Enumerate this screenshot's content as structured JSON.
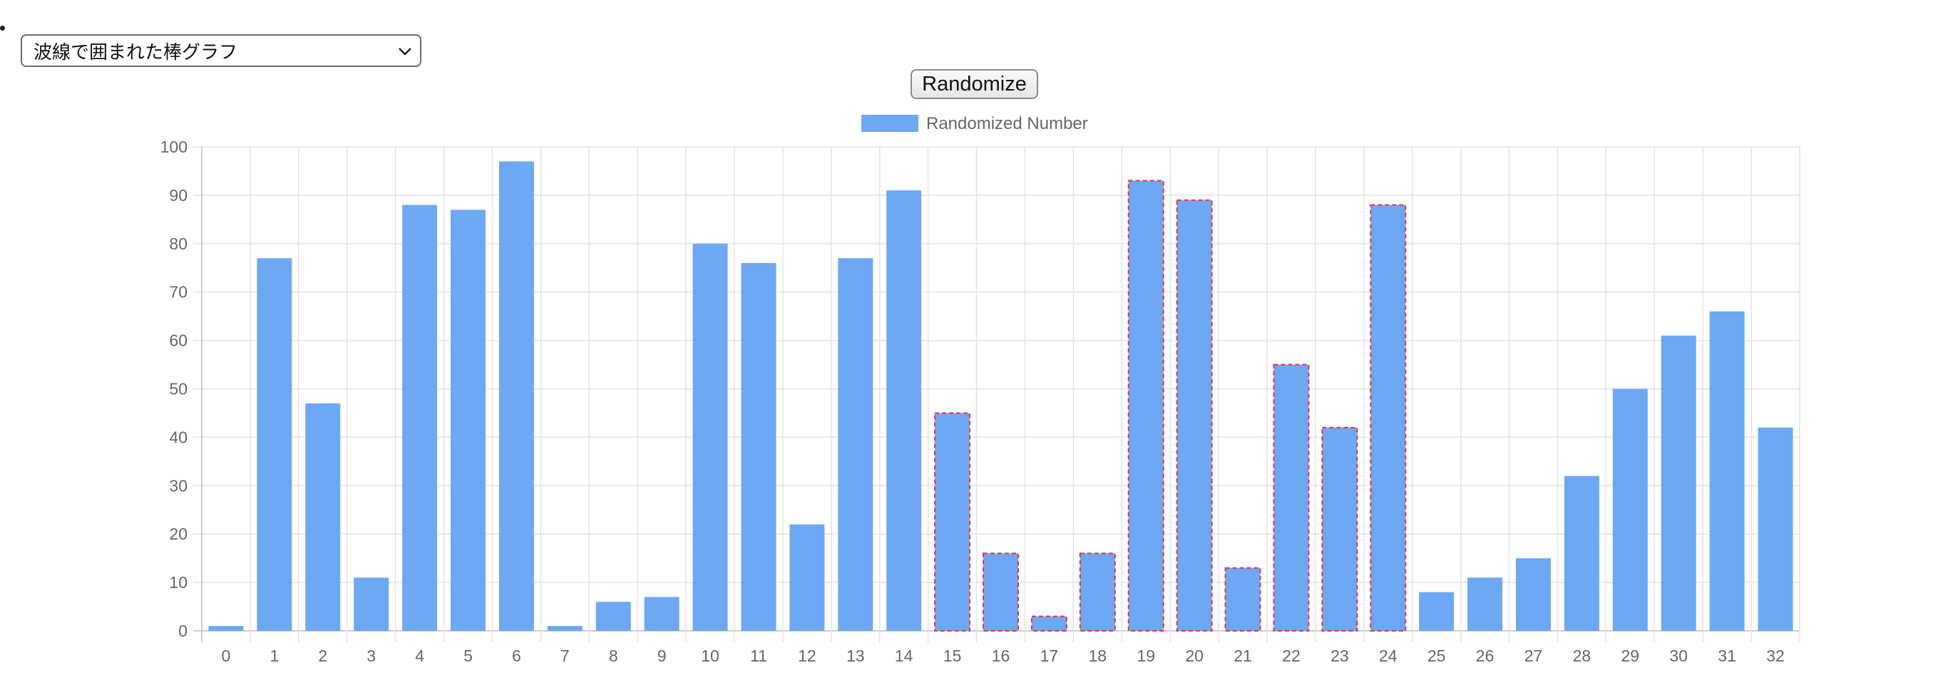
{
  "select": {
    "value": "波線で囲まれた棒グラフ"
  },
  "button": {
    "label": "Randomize"
  },
  "colors": {
    "bar_fill": "#6ea8f2",
    "dashed_border": "#e8323c",
    "grid": "#e3e3e3",
    "axis": "#bdbdbd",
    "tick_text": "#666666"
  },
  "chart_data": {
    "type": "bar",
    "categories": [
      "0",
      "1",
      "2",
      "3",
      "4",
      "5",
      "6",
      "7",
      "8",
      "9",
      "10",
      "11",
      "12",
      "13",
      "14",
      "15",
      "16",
      "17",
      "18",
      "19",
      "20",
      "21",
      "22",
      "23",
      "24",
      "25",
      "26",
      "27",
      "28",
      "29",
      "30",
      "31",
      "32"
    ],
    "series": [
      {
        "name": "Randomized Number",
        "values": [
          1,
          77,
          47,
          11,
          88,
          87,
          97,
          1,
          6,
          7,
          80,
          76,
          22,
          77,
          91,
          45,
          16,
          3,
          16,
          93,
          89,
          13,
          55,
          42,
          88,
          8,
          11,
          15,
          32,
          50,
          61,
          66,
          42
        ]
      }
    ],
    "dashed_categories": [
      "15",
      "16",
      "17",
      "18",
      "19",
      "20",
      "21",
      "22",
      "23",
      "24"
    ],
    "ylim": [
      0,
      100
    ],
    "yticks": [
      0,
      10,
      20,
      30,
      40,
      50,
      60,
      70,
      80,
      90,
      100
    ],
    "grid": true,
    "legend_position": "top-center",
    "title": "",
    "xlabel": "",
    "ylabel": ""
  }
}
